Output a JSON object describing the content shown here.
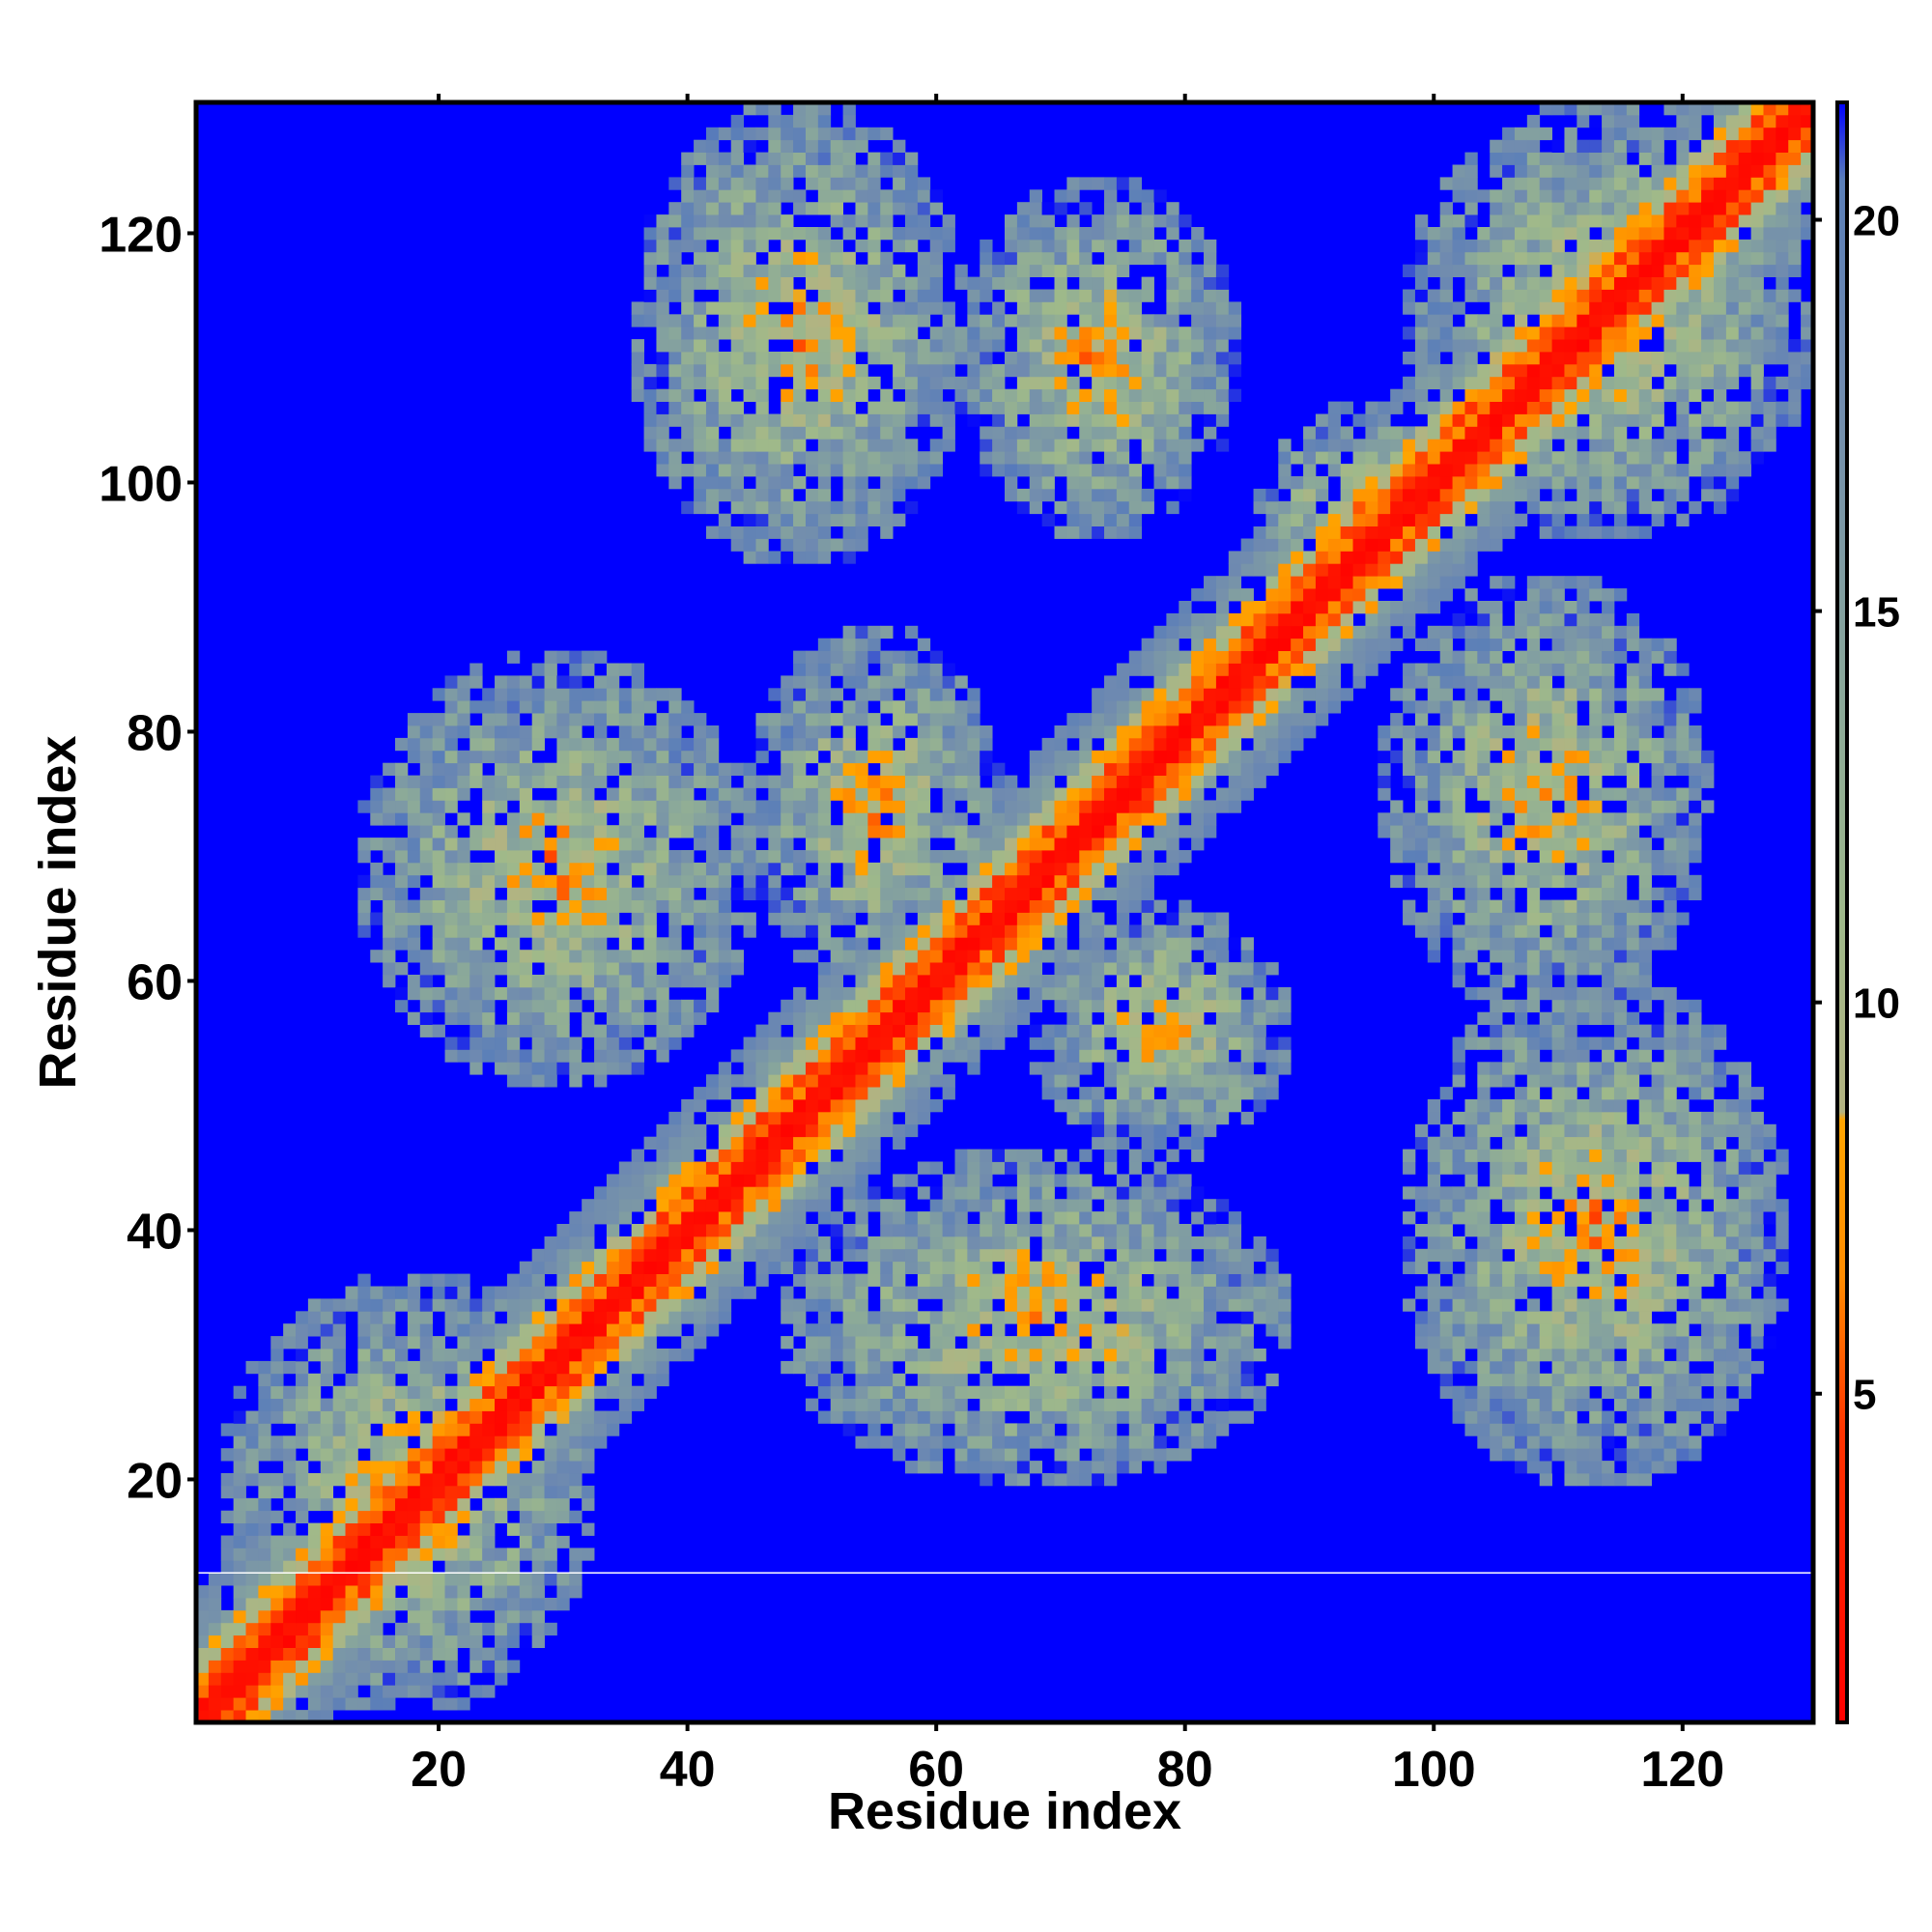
{
  "chart_data": {
    "type": "heatmap",
    "title": "",
    "xlabel": "Residue index",
    "ylabel": "Residue index",
    "xlim": [
      1,
      130
    ],
    "ylim": [
      1,
      130
    ],
    "x_ticks": [
      20,
      40,
      60,
      80,
      100,
      120
    ],
    "y_ticks": [
      20,
      40,
      60,
      80,
      100,
      120
    ],
    "x_tick_labels": [
      "20",
      "40",
      "60",
      "80",
      "100",
      "120"
    ],
    "y_tick_labels": [
      "20",
      "40",
      "60",
      "80",
      "100",
      "120"
    ],
    "n_residues": 130,
    "grid": false,
    "legend": "none",
    "colorbar": {
      "position": "right",
      "range": [
        0.8,
        21.5
      ],
      "ticks": [
        5,
        10,
        15,
        20
      ],
      "tick_labels": [
        "5",
        "10",
        "15",
        "20"
      ],
      "stops": [
        {
          "value": 0.8,
          "color": "#ff0000"
        },
        {
          "value": 4.5,
          "color": "#ff3300"
        },
        {
          "value": 6.5,
          "color": "#ff8c00"
        },
        {
          "value": 8.5,
          "color": "#ffa500"
        },
        {
          "value": 8.6,
          "color": "#b3b381"
        },
        {
          "value": 11,
          "color": "#9fb98a"
        },
        {
          "value": 14,
          "color": "#8aa89a"
        },
        {
          "value": 18,
          "color": "#6f8ab0"
        },
        {
          "value": 20.5,
          "color": "#5b7fb8"
        },
        {
          "value": 21.5,
          "color": "#0000ff"
        }
      ]
    },
    "background_value": 21.5,
    "colors": {
      "background": "#0000ff",
      "near": "#ff0000",
      "orange": "#ff8c00",
      "mid": "#9fb98a"
    },
    "contact_regions": [
      {
        "x": [
          3,
          32
        ],
        "y": [
          2,
          36
        ]
      },
      {
        "x": [
          36,
          62
        ],
        "y": [
          94,
          130
        ]
      },
      {
        "x": [
          62,
          84
        ],
        "y": [
          96,
          124
        ]
      },
      {
        "x": [
          14,
          45
        ],
        "y": [
          52,
          86
        ]
      },
      {
        "x": [
          45,
          65
        ],
        "y": [
          60,
          88
        ]
      },
      {
        "x": [
          48,
          88
        ],
        "y": [
          20,
          46
        ]
      },
      {
        "x": [
          68,
          88
        ],
        "y": [
          46,
          66
        ]
      },
      {
        "x": [
          98,
          128
        ],
        "y": [
          20,
          60
        ]
      },
      {
        "x": [
          96,
          122
        ],
        "y": [
          58,
          92
        ]
      },
      {
        "x": [
          98,
          130
        ],
        "y": [
          96,
          130
        ]
      },
      {
        "x": [
          86,
          102
        ],
        "y": [
          90,
          106
        ]
      }
    ],
    "white_line_y": 12.5
  }
}
